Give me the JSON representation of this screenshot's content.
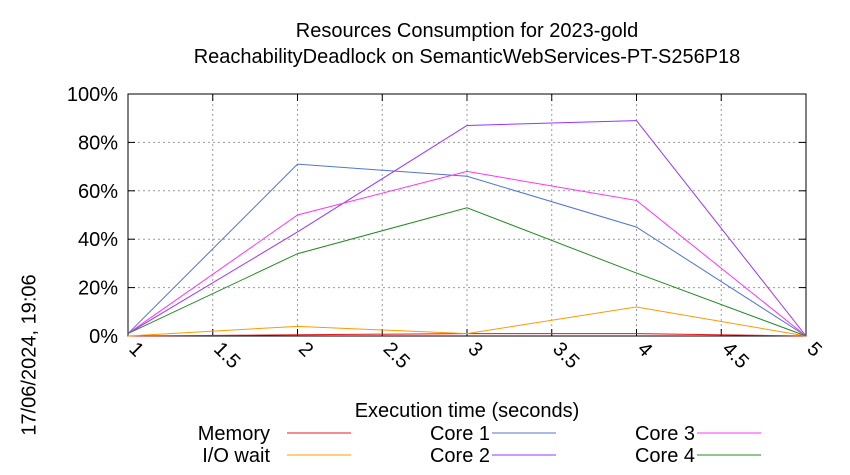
{
  "chart_data": {
    "type": "line",
    "title": "Resources Consumption for 2023-gold",
    "subtitle": "ReachabilityDeadlock on SemanticWebServices-PT-S256P18",
    "xlabel": "Execution time (seconds)",
    "ylabel": "",
    "side_text": "17/06/2024, 19:06",
    "xlim": [
      1,
      5
    ],
    "ylim": [
      0,
      100
    ],
    "x_ticks": [
      "1",
      "1.5",
      "2",
      "2.5",
      "3",
      "3.5",
      "4",
      "4.5",
      "5"
    ],
    "y_ticks": [
      "0%",
      "20%",
      "40%",
      "60%",
      "80%",
      "100%"
    ],
    "grid": true,
    "legend_position": "bottom",
    "x": [
      1,
      2,
      3,
      4,
      5
    ],
    "series": [
      {
        "name": "Memory",
        "color": "#e41a1c",
        "values": [
          0,
          0.5,
          1,
          1,
          0
        ]
      },
      {
        "name": "I/O wait",
        "color": "#ff9900",
        "values": [
          0,
          4,
          1,
          12,
          0
        ]
      },
      {
        "name": "Core 1",
        "color": "#4f74d6",
        "values": [
          1,
          71,
          66,
          45,
          0
        ]
      },
      {
        "name": "Core 2",
        "color": "#9933ff",
        "values": [
          1,
          43,
          87,
          89,
          0
        ]
      },
      {
        "name": "Core 3",
        "color": "#ff33ff",
        "values": [
          1,
          50,
          68,
          56,
          0
        ]
      },
      {
        "name": "Core 4",
        "color": "#228b22",
        "values": [
          1,
          34,
          53,
          26,
          0
        ]
      }
    ]
  }
}
